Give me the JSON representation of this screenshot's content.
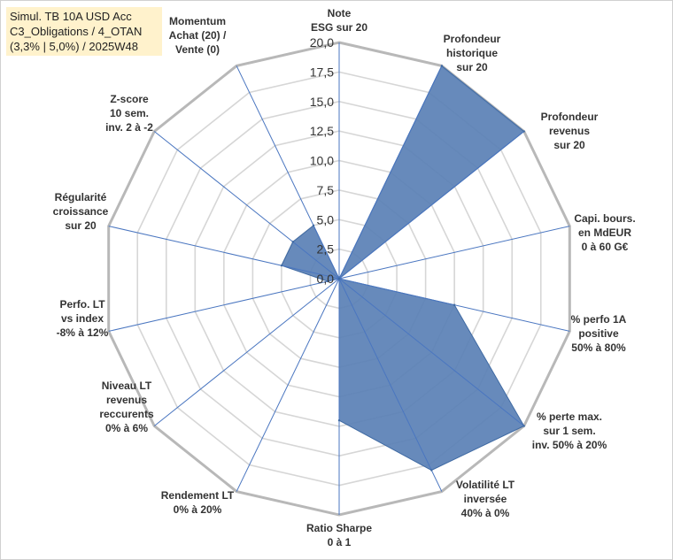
{
  "info_box": {
    "lines": [
      "Simul. TB 10A USD Acc",
      "C3_Obligations / 4_OTAN",
      "(3,3% | 5,0%) / 2025W48"
    ]
  },
  "chart_data": {
    "type": "radar",
    "title": "",
    "rlim": [
      0,
      20
    ],
    "ticks": [
      "0,0",
      "2,5",
      "5,0",
      "7,5",
      "10,0",
      "12,5",
      "15,0",
      "17,5",
      "20,0"
    ],
    "grid": true,
    "fill_color": "#5a80b5",
    "axes": [
      {
        "label": [
          "Note",
          "ESG sur 20"
        ],
        "value": 0
      },
      {
        "label": [
          "Profondeur",
          "historique",
          "sur 20"
        ],
        "value": 20
      },
      {
        "label": [
          "Profondeur",
          "revenus",
          "sur 20"
        ],
        "value": 20
      },
      {
        "label": [
          "Capi. bours.",
          "en MdEUR",
          "0 à 60 G€"
        ],
        "value": 0
      },
      {
        "label": [
          "% perfo 1A",
          "positive",
          "50% à 80%"
        ],
        "value": 10
      },
      {
        "label": [
          "% perte max.",
          "sur 1 sem.",
          "inv. 50% à 20%"
        ],
        "value": 20
      },
      {
        "label": [
          "Volatilité LT",
          "inversée",
          "40% à 0%"
        ],
        "value": 18
      },
      {
        "label": [
          "Ratio Sharpe",
          "0 à 1"
        ],
        "value": 12
      },
      {
        "label": [
          "Rendement LT",
          "0% à 20%"
        ],
        "value": 0
      },
      {
        "label": [
          "Niveau LT",
          "revenus",
          "reccurents",
          "0% à 6%"
        ],
        "value": 0
      },
      {
        "label": [
          "Perfo. LT",
          "vs index",
          "-8% à 12%"
        ],
        "value": 1
      },
      {
        "label": [
          "Régularité",
          "croissance",
          "sur 20"
        ],
        "value": 5
      },
      {
        "label": [
          "Z-score",
          "10 sem.",
          "inv. 2 à -2"
        ],
        "value": 5
      },
      {
        "label": [
          "Momentum",
          "Achat (20) /",
          "Vente (0)"
        ],
        "value": 5
      }
    ]
  }
}
